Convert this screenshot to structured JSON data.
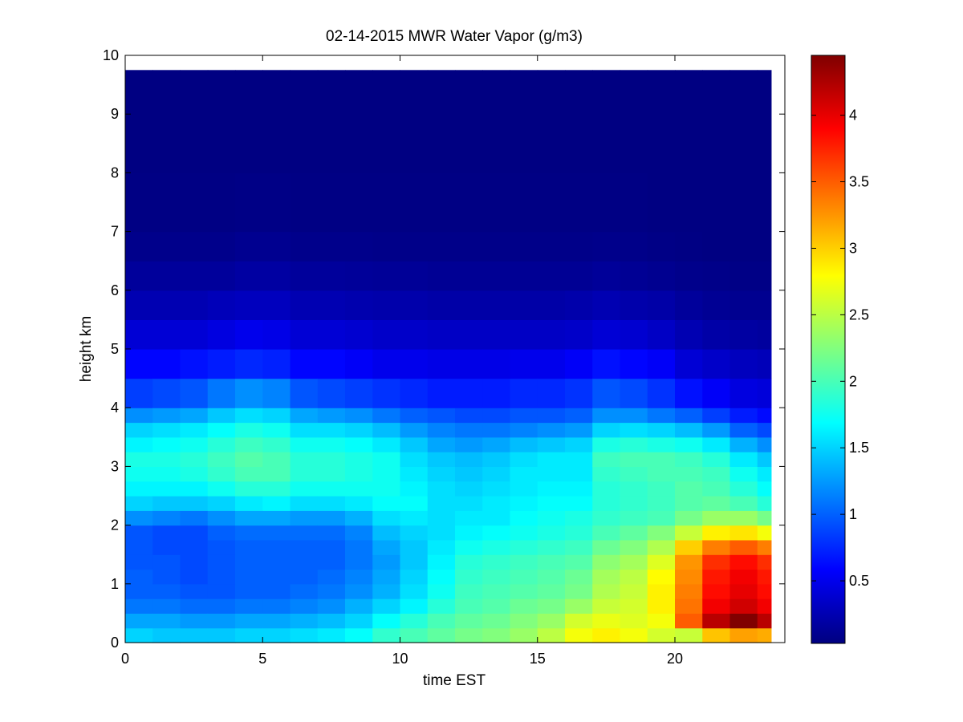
{
  "chart_data": {
    "type": "heatmap",
    "title": "02-14-2015 MWR Water Vapor (g/m3)",
    "xlabel": "time EST",
    "ylabel": "height km",
    "xlim": [
      0,
      24
    ],
    "ylim": [
      0,
      10
    ],
    "xticks": [
      0,
      5,
      10,
      15,
      20
    ],
    "yticks": [
      0,
      1,
      2,
      3,
      4,
      5,
      6,
      7,
      8,
      9,
      10
    ],
    "colorbar": {
      "colormap": "jet",
      "range": [
        0.03,
        4.45
      ],
      "ticks": [
        0.5,
        1,
        1.5,
        2,
        2.5,
        3,
        3.5,
        4
      ],
      "tick_labels": [
        "0.5",
        "1",
        "1.5",
        "2",
        "2.5",
        "3",
        "3.5",
        "4"
      ]
    },
    "time_bins": [
      0,
      1,
      2,
      3,
      4,
      5,
      6,
      7,
      8,
      9,
      10,
      11,
      12,
      13,
      14,
      15,
      16,
      17,
      18,
      19,
      20,
      21,
      22,
      23
    ],
    "heights_km": [
      0.0,
      0.25,
      0.5,
      0.75,
      1.0,
      1.25,
      1.5,
      1.75,
      2.0,
      2.25,
      2.5,
      2.75,
      3.0,
      3.25,
      3.5,
      3.75,
      4.0,
      4.5,
      5.0,
      5.5,
      6.0,
      6.5,
      7.0,
      8.0,
      9.75
    ],
    "columns": [
      [
        1.5,
        1.3,
        1.1,
        1.0,
        1.0,
        0.95,
        0.95,
        0.95,
        1.2,
        1.5,
        1.65,
        1.75,
        1.8,
        1.65,
        1.5,
        1.2,
        0.85,
        0.6,
        0.4,
        0.25,
        0.15,
        0.08,
        0.05,
        0.04,
        0.04
      ],
      [
        1.45,
        1.3,
        1.1,
        1.0,
        0.95,
        0.95,
        0.9,
        0.9,
        1.15,
        1.45,
        1.65,
        1.75,
        1.8,
        1.7,
        1.55,
        1.25,
        0.9,
        0.6,
        0.4,
        0.25,
        0.15,
        0.08,
        0.05,
        0.04,
        0.04
      ],
      [
        1.45,
        1.25,
        1.05,
        0.95,
        0.9,
        0.9,
        0.9,
        0.9,
        1.1,
        1.45,
        1.65,
        1.8,
        1.85,
        1.75,
        1.6,
        1.3,
        0.95,
        0.65,
        0.4,
        0.25,
        0.15,
        0.08,
        0.05,
        0.04,
        0.04
      ],
      [
        1.45,
        1.25,
        1.05,
        0.95,
        0.95,
        0.95,
        0.95,
        1.0,
        1.2,
        1.5,
        1.75,
        1.9,
        1.95,
        1.85,
        1.7,
        1.45,
        1.1,
        0.7,
        0.45,
        0.28,
        0.15,
        0.08,
        0.05,
        0.04,
        0.04
      ],
      [
        1.5,
        1.3,
        1.1,
        1.0,
        1.0,
        1.0,
        1.0,
        1.05,
        1.3,
        1.6,
        1.85,
        2.0,
        2.05,
        1.95,
        1.8,
        1.55,
        1.2,
        0.75,
        0.5,
        0.3,
        0.18,
        0.1,
        0.06,
        0.04,
        0.04
      ],
      [
        1.5,
        1.3,
        1.1,
        1.0,
        1.0,
        1.0,
        1.0,
        1.05,
        1.3,
        1.65,
        1.85,
        2.0,
        2.0,
        1.9,
        1.75,
        1.5,
        1.15,
        0.72,
        0.48,
        0.3,
        0.18,
        0.1,
        0.06,
        0.04,
        0.04
      ],
      [
        1.55,
        1.35,
        1.15,
        1.05,
        1.0,
        1.0,
        1.0,
        1.05,
        1.25,
        1.55,
        1.75,
        1.85,
        1.85,
        1.75,
        1.55,
        1.3,
        0.95,
        0.6,
        0.4,
        0.25,
        0.15,
        0.08,
        0.05,
        0.04,
        0.04
      ],
      [
        1.6,
        1.4,
        1.2,
        1.1,
        1.05,
        1.0,
        1.0,
        1.05,
        1.25,
        1.55,
        1.75,
        1.85,
        1.85,
        1.75,
        1.55,
        1.25,
        0.9,
        0.6,
        0.4,
        0.25,
        0.15,
        0.08,
        0.05,
        0.04,
        0.04
      ],
      [
        1.7,
        1.5,
        1.35,
        1.2,
        1.15,
        1.1,
        1.1,
        1.15,
        1.35,
        1.6,
        1.75,
        1.8,
        1.8,
        1.7,
        1.5,
        1.2,
        0.85,
        0.55,
        0.38,
        0.23,
        0.14,
        0.08,
        0.05,
        0.04,
        0.04
      ],
      [
        1.9,
        1.7,
        1.5,
        1.35,
        1.3,
        1.25,
        1.3,
        1.4,
        1.55,
        1.7,
        1.75,
        1.75,
        1.75,
        1.6,
        1.4,
        1.1,
        0.8,
        0.5,
        0.35,
        0.22,
        0.13,
        0.07,
        0.05,
        0.04,
        0.04
      ],
      [
        2.0,
        1.85,
        1.65,
        1.55,
        1.5,
        1.45,
        1.45,
        1.5,
        1.6,
        1.7,
        1.65,
        1.6,
        1.55,
        1.45,
        1.25,
        1.0,
        0.75,
        0.5,
        0.35,
        0.22,
        0.13,
        0.07,
        0.05,
        0.04,
        0.04
      ],
      [
        2.1,
        2.0,
        1.85,
        1.75,
        1.7,
        1.65,
        1.6,
        1.55,
        1.55,
        1.55,
        1.55,
        1.5,
        1.45,
        1.3,
        1.15,
        0.95,
        0.7,
        0.48,
        0.33,
        0.2,
        0.12,
        0.07,
        0.05,
        0.04,
        0.04
      ],
      [
        2.2,
        2.1,
        2.0,
        1.95,
        1.9,
        1.85,
        1.75,
        1.65,
        1.6,
        1.55,
        1.5,
        1.45,
        1.4,
        1.25,
        1.1,
        0.9,
        0.7,
        0.48,
        0.33,
        0.2,
        0.12,
        0.07,
        0.05,
        0.04,
        0.04
      ],
      [
        2.25,
        2.15,
        2.05,
        2.0,
        1.95,
        1.9,
        1.8,
        1.7,
        1.6,
        1.6,
        1.55,
        1.5,
        1.45,
        1.3,
        1.1,
        0.9,
        0.7,
        0.48,
        0.33,
        0.2,
        0.12,
        0.07,
        0.05,
        0.04,
        0.04
      ],
      [
        2.35,
        2.25,
        2.15,
        2.05,
        2.0,
        1.95,
        1.85,
        1.75,
        1.7,
        1.65,
        1.6,
        1.6,
        1.55,
        1.4,
        1.15,
        0.95,
        0.75,
        0.5,
        0.33,
        0.2,
        0.12,
        0.07,
        0.05,
        0.04,
        0.04
      ],
      [
        2.5,
        2.35,
        2.2,
        2.1,
        2.05,
        2.0,
        1.9,
        1.8,
        1.75,
        1.7,
        1.65,
        1.6,
        1.6,
        1.45,
        1.2,
        0.95,
        0.75,
        0.5,
        0.33,
        0.2,
        0.12,
        0.07,
        0.05,
        0.04,
        0.04
      ],
      [
        2.75,
        2.6,
        2.35,
        2.2,
        2.15,
        2.05,
        1.95,
        1.85,
        1.8,
        1.7,
        1.65,
        1.6,
        1.6,
        1.5,
        1.25,
        1.0,
        0.8,
        0.55,
        0.35,
        0.22,
        0.12,
        0.07,
        0.05,
        0.04,
        0.04
      ],
      [
        2.85,
        2.7,
        2.55,
        2.45,
        2.4,
        2.3,
        2.15,
        2.0,
        1.9,
        1.85,
        1.85,
        1.9,
        1.95,
        1.8,
        1.5,
        1.2,
        0.95,
        0.65,
        0.4,
        0.25,
        0.14,
        0.08,
        0.05,
        0.04,
        0.04
      ],
      [
        2.75,
        2.65,
        2.6,
        2.55,
        2.5,
        2.4,
        2.25,
        2.1,
        1.95,
        1.9,
        1.9,
        1.95,
        2.0,
        1.85,
        1.55,
        1.2,
        0.9,
        0.6,
        0.38,
        0.22,
        0.12,
        0.07,
        0.05,
        0.04,
        0.04
      ],
      [
        2.6,
        2.75,
        2.85,
        2.85,
        2.8,
        2.65,
        2.45,
        2.25,
        2.0,
        1.95,
        1.95,
        2.0,
        2.0,
        1.8,
        1.5,
        1.1,
        0.8,
        0.55,
        0.33,
        0.2,
        0.1,
        0.06,
        0.04,
        0.04,
        0.04
      ],
      [
        2.55,
        3.5,
        3.4,
        3.35,
        3.3,
        3.25,
        3.0,
        2.55,
        2.2,
        2.05,
        2.05,
        2.0,
        1.95,
        1.75,
        1.4,
        1.0,
        0.65,
        0.4,
        0.25,
        0.15,
        0.08,
        0.05,
        0.04,
        0.04,
        0.04
      ],
      [
        3.05,
        4.2,
        3.95,
        3.85,
        3.8,
        3.7,
        3.35,
        2.85,
        2.35,
        2.1,
        2.0,
        1.95,
        1.85,
        1.6,
        1.25,
        0.85,
        0.55,
        0.35,
        0.2,
        0.12,
        0.07,
        0.04,
        0.04,
        0.04,
        0.04
      ],
      [
        3.2,
        4.45,
        4.1,
        4.0,
        3.95,
        3.85,
        3.5,
        2.9,
        2.35,
        2.0,
        1.85,
        1.75,
        1.6,
        1.35,
        1.0,
        0.7,
        0.45,
        0.3,
        0.18,
        0.1,
        0.06,
        0.04,
        0.04,
        0.04,
        0.04
      ],
      [
        3.15,
        4.2,
        3.95,
        3.85,
        3.8,
        3.7,
        3.35,
        2.75,
        2.2,
        1.85,
        1.7,
        1.6,
        1.45,
        1.2,
        0.9,
        0.62,
        0.42,
        0.28,
        0.16,
        0.1,
        0.06,
        0.04,
        0.04,
        0.04,
        0.04
      ]
    ]
  }
}
